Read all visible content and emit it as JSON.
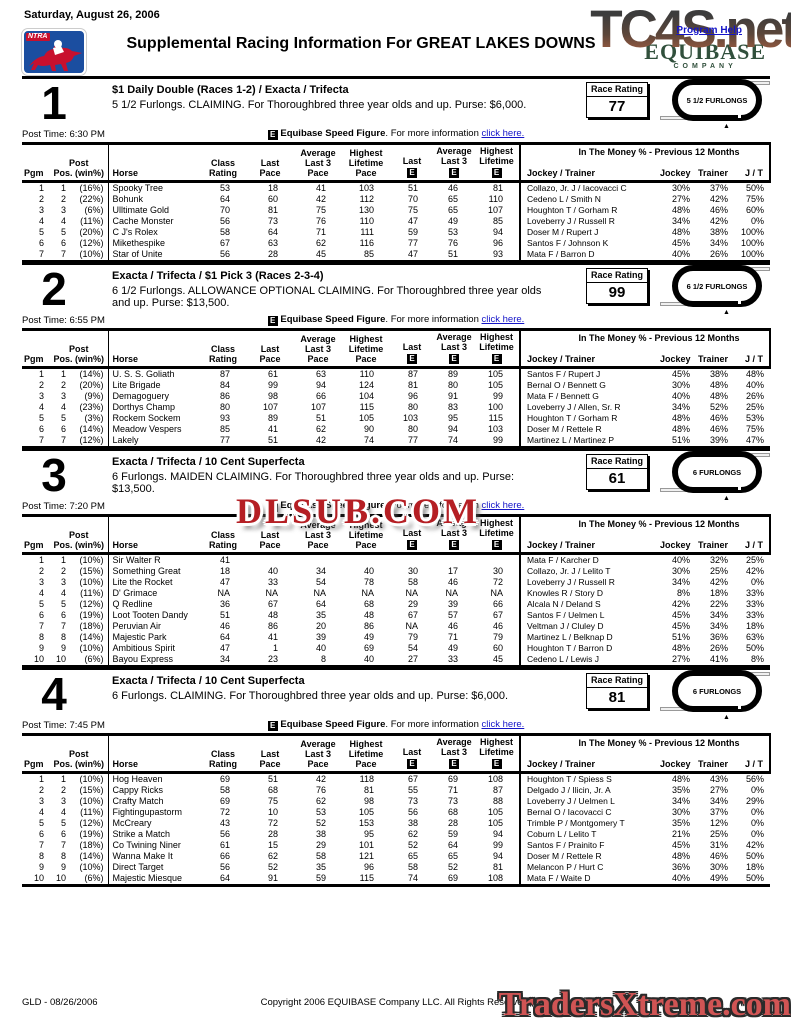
{
  "page": {
    "date": "Saturday, August 26, 2006",
    "ntra_label": "NTRA",
    "title": "Supplemental Racing Information For GREAT LAKES DOWNS",
    "program_help": "Program Help",
    "equibase_line1": "EQUIBASE",
    "equibase_line2": "COMPANY",
    "watermark_top": "TC4S.net",
    "watermark_mid": "DLSUB.COM",
    "watermark_bottom": "TradersXtreme.com",
    "footer_left": "GLD - 08/26/2006",
    "footer_center": "Copyright 2006 EQUIBASE Company LLC. All Rights Reserved."
  },
  "speed_figure_note": {
    "icon": "E",
    "bold": "Equibase Speed Figure",
    "rest": ". For more information ",
    "link": "click here."
  },
  "table_headers": {
    "pgm": "Pgm",
    "post_pos": "Post\nPos. (win%)",
    "horse": "Horse",
    "class_rating": "Class\nRating",
    "last_pace": "Last\nPace",
    "avg_last3_pace": "Average\nLast 3\nPace",
    "highest_lifetime_pace": "Highest\nLifetime\nPace",
    "last_e": "Last",
    "avg_last3_e": "Average\nLast 3",
    "highest_lifetime_e": "Highest\nLifetime",
    "e_symbol": "E",
    "itm_title": "In The Money % - Previous 12 Months",
    "jockey_trainer": "Jockey / Trainer",
    "jockey": "Jockey",
    "trainer": "Trainer",
    "jt": "J / T"
  },
  "races": [
    {
      "number": "1",
      "bets": "$1 Daily Double (Races 1-2) / Exacta / Trifecta",
      "conditions": "5 1/2 Furlongs. CLAIMING. For Thoroughbred three year olds and up. Purse: $6,000.",
      "race_rating_label": "Race Rating",
      "race_rating": "77",
      "distance_badge": "5 1/2 FURLONGS",
      "post_time": "Post Time: 6:30 PM",
      "rows": [
        [
          "1",
          "1",
          "(16%)",
          "Spooky Tree",
          "53",
          "18",
          "41",
          "103",
          "51",
          "46",
          "81",
          "Collazo, Jr. J / Iacovacci C",
          "30%",
          "37%",
          "50%"
        ],
        [
          "2",
          "2",
          "(22%)",
          "Bohunk",
          "64",
          "60",
          "42",
          "112",
          "70",
          "65",
          "110",
          "Cedeno L / Smith N",
          "27%",
          "42%",
          "75%"
        ],
        [
          "3",
          "3",
          "(6%)",
          "Ulltimate Gold",
          "70",
          "81",
          "75",
          "130",
          "75",
          "65",
          "107",
          "Houghton T / Gorham R",
          "48%",
          "46%",
          "60%"
        ],
        [
          "4",
          "4",
          "(11%)",
          "Cache Monster",
          "56",
          "73",
          "76",
          "110",
          "47",
          "49",
          "85",
          "Loveberry J / Russell R",
          "34%",
          "42%",
          "0%"
        ],
        [
          "5",
          "5",
          "(20%)",
          "C J's Rolex",
          "58",
          "64",
          "71",
          "111",
          "59",
          "53",
          "94",
          "Doser M / Rupert J",
          "48%",
          "38%",
          "100%"
        ],
        [
          "6",
          "6",
          "(12%)",
          "Mikethespike",
          "67",
          "63",
          "62",
          "116",
          "77",
          "76",
          "96",
          "Santos F / Johnson K",
          "45%",
          "34%",
          "100%"
        ],
        [
          "7",
          "7",
          "(10%)",
          "Star of Unite",
          "56",
          "28",
          "45",
          "85",
          "47",
          "51",
          "93",
          "Mata F / Barron D",
          "40%",
          "26%",
          "100%"
        ]
      ]
    },
    {
      "number": "2",
      "bets": "Exacta / Trifecta / $1 Pick 3 (Races 2-3-4)",
      "conditions": "6 1/2 Furlongs. ALLOWANCE OPTIONAL CLAIMING. For Thoroughbred three year olds and up. Purse: $13,500.",
      "race_rating_label": "Race Rating",
      "race_rating": "99",
      "distance_badge": "6 1/2 FURLONGS",
      "post_time": "Post Time: 6:55 PM",
      "rows": [
        [
          "1",
          "1",
          "(14%)",
          "U. S. S. Goliath",
          "87",
          "61",
          "63",
          "110",
          "87",
          "89",
          "105",
          "Santos F / Rupert J",
          "45%",
          "38%",
          "48%"
        ],
        [
          "2",
          "2",
          "(20%)",
          "Lite Brigade",
          "84",
          "99",
          "94",
          "124",
          "81",
          "80",
          "105",
          "Bernal O / Bennett G",
          "30%",
          "48%",
          "40%"
        ],
        [
          "3",
          "3",
          "(9%)",
          "Demagoguery",
          "86",
          "98",
          "66",
          "104",
          "96",
          "91",
          "99",
          "Mata F / Bennett G",
          "40%",
          "48%",
          "26%"
        ],
        [
          "4",
          "4",
          "(23%)",
          "Dorthys Champ",
          "80",
          "107",
          "107",
          "115",
          "80",
          "83",
          "100",
          "Loveberry J / Allen, Sr. R",
          "34%",
          "52%",
          "25%"
        ],
        [
          "5",
          "5",
          "(3%)",
          "Rockem Sockem",
          "93",
          "89",
          "51",
          "105",
          "103",
          "95",
          "115",
          "Houghton T / Gorham R",
          "48%",
          "46%",
          "53%"
        ],
        [
          "6",
          "6",
          "(14%)",
          "Meadow Vespers",
          "85",
          "41",
          "62",
          "90",
          "80",
          "94",
          "103",
          "Doser M / Rettele R",
          "48%",
          "46%",
          "75%"
        ],
        [
          "7",
          "7",
          "(12%)",
          "Lakely",
          "77",
          "51",
          "42",
          "74",
          "77",
          "74",
          "99",
          "Martinez L / Martinez P",
          "51%",
          "39%",
          "47%"
        ]
      ]
    },
    {
      "number": "3",
      "bets": "Exacta / Trifecta / 10 Cent Superfecta",
      "conditions": "6 Furlongs. MAIDEN CLAIMING. For Thoroughbred three year olds and up. Purse: $13,500.",
      "race_rating_label": "Race Rating",
      "race_rating": "61",
      "distance_badge": "6 FURLONGS",
      "post_time": "Post Time: 7:20 PM",
      "rows": [
        [
          "1",
          "1",
          "(10%)",
          "Sir Walter R",
          "41",
          "",
          "",
          "",
          "",
          "",
          "",
          "Mata F / Karcher D",
          "40%",
          "32%",
          "25%"
        ],
        [
          "2",
          "2",
          "(15%)",
          "Something Great",
          "18",
          "40",
          "34",
          "40",
          "30",
          "17",
          "30",
          "Collazo, Jr. J / Lelito T",
          "30%",
          "25%",
          "42%"
        ],
        [
          "3",
          "3",
          "(10%)",
          "Lite the Rocket",
          "47",
          "33",
          "54",
          "78",
          "58",
          "46",
          "72",
          "Loveberry J / Russell R",
          "34%",
          "42%",
          "0%"
        ],
        [
          "4",
          "4",
          "(11%)",
          "D' Grimace",
          "NA",
          "NA",
          "NA",
          "NA",
          "NA",
          "NA",
          "NA",
          "Knowles R / Story D",
          "8%",
          "18%",
          "33%"
        ],
        [
          "5",
          "5",
          "(12%)",
          "Q Redline",
          "36",
          "67",
          "64",
          "68",
          "29",
          "39",
          "66",
          "Alcala N / Deland S",
          "42%",
          "22%",
          "33%"
        ],
        [
          "6",
          "6",
          "(19%)",
          "Loot Tooten Dandy",
          "51",
          "48",
          "35",
          "48",
          "67",
          "57",
          "67",
          "Santos F / Uelmen L",
          "45%",
          "34%",
          "33%"
        ],
        [
          "7",
          "7",
          "(18%)",
          "Peruvian Air",
          "46",
          "86",
          "20",
          "86",
          "NA",
          "46",
          "46",
          "Veltman J / Cluley D",
          "45%",
          "34%",
          "18%"
        ],
        [
          "8",
          "8",
          "(14%)",
          "Majestic Park",
          "64",
          "41",
          "39",
          "49",
          "79",
          "71",
          "79",
          "Martinez L / Belknap D",
          "51%",
          "36%",
          "63%"
        ],
        [
          "9",
          "9",
          "(10%)",
          "Ambitious Spirit",
          "47",
          "1",
          "40",
          "69",
          "54",
          "49",
          "60",
          "Houghton T / Barron D",
          "48%",
          "26%",
          "50%"
        ],
        [
          "10",
          "10",
          "(6%)",
          "Bayou Express",
          "34",
          "23",
          "8",
          "40",
          "27",
          "33",
          "45",
          "Cedeno L / Lewis J",
          "27%",
          "41%",
          "8%"
        ]
      ]
    },
    {
      "number": "4",
      "bets": "Exacta / Trifecta / 10 Cent Superfecta",
      "conditions": "6 Furlongs. CLAIMING. For Thoroughbred three year olds and up. Purse: $6,000.",
      "race_rating_label": "Race Rating",
      "race_rating": "81",
      "distance_badge": "6 FURLONGS",
      "post_time": "Post Time: 7:45 PM",
      "rows": [
        [
          "1",
          "1",
          "(10%)",
          "Hog Heaven",
          "69",
          "51",
          "42",
          "118",
          "67",
          "69",
          "108",
          "Houghton T / Spiess S",
          "48%",
          "43%",
          "56%"
        ],
        [
          "2",
          "2",
          "(15%)",
          "Cappy Ricks",
          "58",
          "68",
          "76",
          "81",
          "55",
          "71",
          "87",
          "Delgado J / Ilicin, Jr. A",
          "35%",
          "27%",
          "0%"
        ],
        [
          "3",
          "3",
          "(10%)",
          "Crafty Match",
          "69",
          "75",
          "62",
          "98",
          "73",
          "73",
          "88",
          "Loveberry J / Uelmen L",
          "34%",
          "34%",
          "29%"
        ],
        [
          "4",
          "4",
          "(11%)",
          "Fightingupastorm",
          "72",
          "10",
          "53",
          "105",
          "56",
          "68",
          "105",
          "Bernal O / Iacovacci C",
          "30%",
          "37%",
          "0%"
        ],
        [
          "5",
          "5",
          "(12%)",
          "McCreary",
          "43",
          "72",
          "52",
          "153",
          "38",
          "28",
          "105",
          "Trimble P / Montgomery T",
          "35%",
          "12%",
          "0%"
        ],
        [
          "6",
          "6",
          "(19%)",
          "Strike a Match",
          "56",
          "28",
          "38",
          "95",
          "62",
          "59",
          "94",
          "Coburn L / Lelito T",
          "21%",
          "25%",
          "0%"
        ],
        [
          "7",
          "7",
          "(18%)",
          "Co Twining Niner",
          "61",
          "15",
          "29",
          "101",
          "52",
          "64",
          "99",
          "Santos F / Prainito F",
          "45%",
          "31%",
          "42%"
        ],
        [
          "8",
          "8",
          "(14%)",
          "Wanna Make It",
          "66",
          "62",
          "58",
          "121",
          "65",
          "65",
          "94",
          "Doser M / Rettele R",
          "48%",
          "46%",
          "50%"
        ],
        [
          "9",
          "9",
          "(10%)",
          "Direct Target",
          "56",
          "52",
          "35",
          "96",
          "58",
          "52",
          "81",
          "Melancon P / Hurt C",
          "36%",
          "30%",
          "18%"
        ],
        [
          "10",
          "10",
          "(6%)",
          "Majestic Miesque",
          "64",
          "91",
          "59",
          "115",
          "74",
          "69",
          "108",
          "Mata F / Waite D",
          "40%",
          "49%",
          "50%"
        ]
      ]
    }
  ]
}
